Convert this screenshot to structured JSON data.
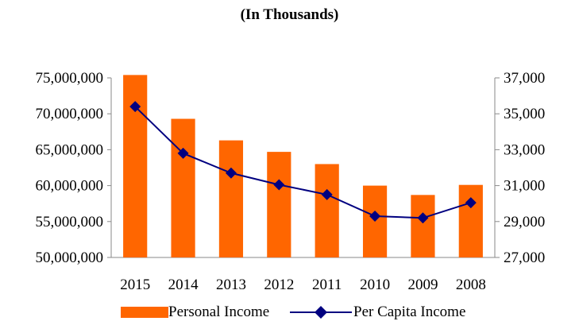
{
  "chart_data": {
    "type": "bar+line",
    "title": "(In Thousands)",
    "categories": [
      "2015",
      "2014",
      "2013",
      "2012",
      "2011",
      "2010",
      "2009",
      "2008"
    ],
    "series": [
      {
        "name": "Personal Income",
        "type": "bar",
        "axis": "left",
        "color": "#FF6600",
        "values": [
          75400000,
          69300000,
          66300000,
          64700000,
          63000000,
          60000000,
          58700000,
          60100000
        ]
      },
      {
        "name": "Per Capita Income",
        "type": "line",
        "axis": "right",
        "color": "#000080",
        "marker": "diamond",
        "values": [
          35400,
          32800,
          31700,
          31050,
          30500,
          29300,
          29200,
          30050
        ]
      }
    ],
    "left_axis": {
      "ylim": [
        50000000,
        75000000
      ],
      "ticks": [
        50000000,
        55000000,
        60000000,
        65000000,
        70000000,
        75000000
      ],
      "tick_labels": [
        "50,000,000",
        "55,000,000",
        "60,000,000",
        "65,000,000",
        "70,000,000",
        "75,000,000"
      ]
    },
    "right_axis": {
      "ylim": [
        27000,
        37000
      ],
      "ticks": [
        27000,
        29000,
        31000,
        33000,
        35000,
        37000
      ],
      "tick_labels": [
        "27,000",
        "29,000",
        "31,000",
        "33,000",
        "35,000",
        "37,000"
      ]
    },
    "grid": false,
    "legend_position": "bottom"
  }
}
